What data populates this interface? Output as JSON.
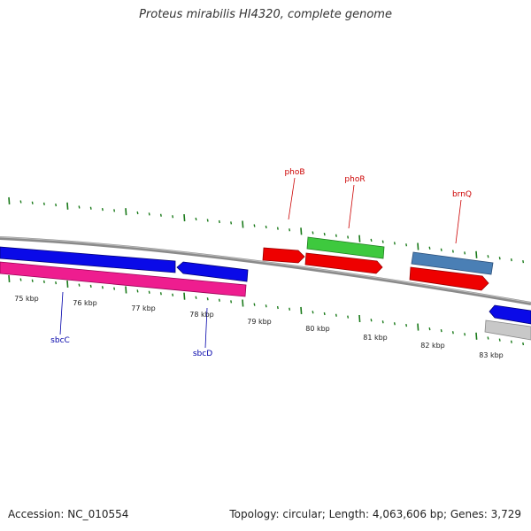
{
  "title": "Proteus mirabilis HI4320, complete genome",
  "footer": {
    "accession": "Accession: NC_010554",
    "summary": "Topology: circular; Length: 4,063,606 bp; Genes: 3,729"
  },
  "colors": {
    "backbone": "#888888",
    "tick_marks": "#1a7a1a",
    "label_red": "#cc0000",
    "label_blue": "#0000aa"
  },
  "scale_labels": [
    "75 kbp",
    "76 kbp",
    "77 kbp",
    "78 kbp",
    "79 kbp",
    "80 kbp",
    "81 kbp",
    "82 kbp",
    "83 kbp"
  ],
  "gene_labels": [
    {
      "name": "phoB",
      "color": "#cc0000"
    },
    {
      "name": "phoR",
      "color": "#cc0000"
    },
    {
      "name": "brnQ",
      "color": "#cc0000"
    },
    {
      "name": "sbcC",
      "color": "#0000aa"
    },
    {
      "name": "sbcD",
      "color": "#0000aa"
    }
  ],
  "features": [
    {
      "name": "sbcC-gene",
      "color": "#0a0ae8",
      "strand": "forward"
    },
    {
      "name": "sbcD-gene",
      "color": "#0a0ae8",
      "strand": "reverse"
    },
    {
      "name": "pink-gene",
      "color": "#ee1d8f",
      "strand": "forward"
    },
    {
      "name": "phoB-gene",
      "color": "#ee0000",
      "strand": "forward"
    },
    {
      "name": "phoR-upper-gene",
      "color": "#3ec93e",
      "strand": "forward"
    },
    {
      "name": "phoR-lower-gene",
      "color": "#ee0000",
      "strand": "forward"
    },
    {
      "name": "brnQ-upper-gene",
      "color": "#4a7fb5",
      "strand": "forward"
    },
    {
      "name": "brnQ-lower-gene",
      "color": "#ee0000",
      "strand": "forward"
    },
    {
      "name": "edge-blue-gene",
      "color": "#0a0ae8",
      "strand": "reverse"
    },
    {
      "name": "edge-gray-gene",
      "color": "#c8c8c8",
      "strand": "forward"
    }
  ]
}
